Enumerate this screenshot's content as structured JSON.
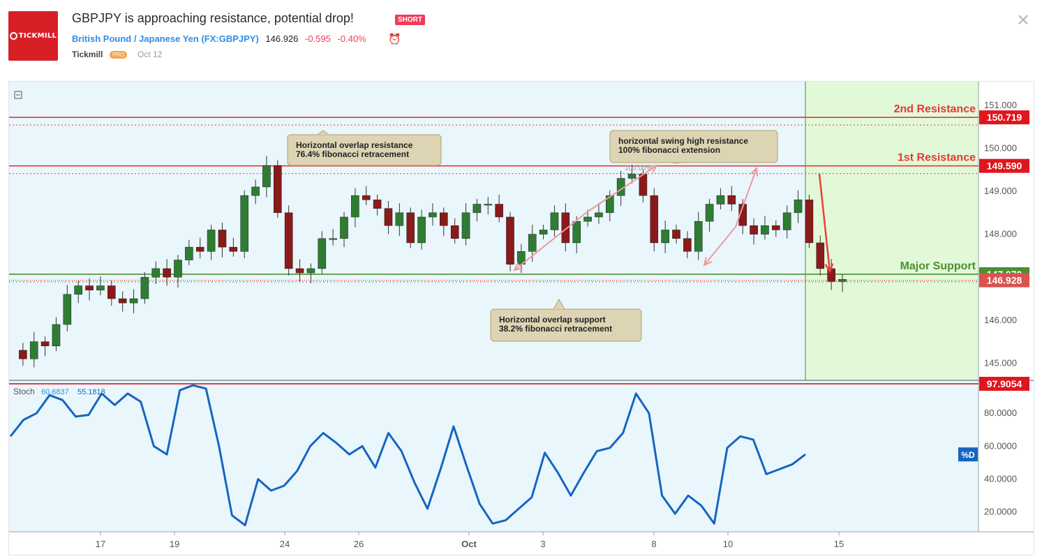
{
  "header": {
    "logo_text": "TICKMILL",
    "title": "GBPJPY is approaching resistance, potential drop!",
    "badge": "SHORT",
    "symbol_name": "British Pound / Japanese Yen",
    "symbol_code": "(FX:GBPJPY)",
    "price": "146.926",
    "change": "-0.595",
    "change_pct": "-0.40%",
    "author": "Tickmill",
    "author_badge": "PRO",
    "date": "Oct 12",
    "close_glyph": "✕",
    "alarm_glyph": "⏰"
  },
  "chart_data": [
    {
      "type": "line",
      "name": "price",
      "x_ticks": [
        "17",
        "19",
        "24",
        "26",
        "Oct",
        "3",
        "8",
        "10",
        "15"
      ],
      "y_ticks": [
        "151.000",
        "150.000",
        "149.000",
        "148.000",
        "147.000",
        "146.000",
        "145.000"
      ],
      "ylim": [
        144.6,
        151.55
      ],
      "series": [
        {
          "values": [
            145.3,
            145.1,
            145.5,
            145.4,
            145.9,
            146.6,
            146.8,
            146.7,
            146.8,
            146.5,
            146.4,
            146.5,
            147.0,
            147.2,
            147.0,
            147.4,
            147.7,
            147.6,
            148.1,
            147.7,
            147.6,
            148.9,
            149.1,
            149.6,
            148.5,
            147.2,
            147.1,
            147.2,
            147.9,
            147.9,
            148.4,
            148.9,
            148.8,
            148.6,
            148.2,
            148.5,
            147.8,
            148.4,
            148.5,
            148.2,
            147.9,
            148.5,
            148.7,
            148.7,
            148.4,
            147.3,
            147.6,
            148.0,
            148.1,
            148.5,
            147.8,
            148.3,
            148.4,
            148.5,
            148.9,
            149.3,
            149.4,
            148.9,
            147.8,
            148.1,
            147.9,
            147.6,
            148.3,
            148.7,
            148.9,
            148.7,
            148.2,
            148.0,
            148.2,
            148.1,
            148.5,
            148.8,
            147.8,
            147.2,
            146.9,
            146.95
          ]
        }
      ],
      "levels": [
        {
          "label": "2nd Resistance",
          "value": "150.719",
          "color": "#e53935"
        },
        {
          "label": "1st Resistance",
          "value": "149.590",
          "color": "#e53935"
        },
        {
          "label": "Major Support",
          "value": "147.070",
          "color": "#4c8f2f"
        }
      ],
      "current_price_tag": "146.928",
      "annotations": [
        {
          "line1": "Horizontal overlap resistance",
          "line2": "76.4% fibonacci retracement"
        },
        {
          "line1": "horizontal swing high resistance",
          "line2": "100% fibonacci extension"
        },
        {
          "line1": "Horizontal overlap support",
          "line2": "38.2% fibonacci retracement"
        }
      ],
      "fib_label": "100.00%"
    },
    {
      "type": "line",
      "name": "stochastic",
      "indicator_label": "Stoch",
      "indicator_values": [
        "60.6837",
        "55.1818"
      ],
      "y_ticks": [
        "80.0000",
        "60.0000",
        "40.0000",
        "20.0000"
      ],
      "ylim": [
        8,
        100
      ],
      "overbought_tag": "97.9054",
      "series_tag": "%D",
      "series": [
        {
          "color": "#1565c0",
          "values": [
            66,
            76,
            80,
            91,
            88,
            78,
            79,
            92,
            85,
            92,
            87,
            60,
            55,
            94,
            97,
            95,
            60,
            18,
            12,
            40,
            33,
            36,
            45,
            60,
            68,
            62,
            55,
            60,
            47,
            68,
            57,
            38,
            22,
            46,
            72,
            48,
            25,
            13,
            15,
            22,
            29,
            56,
            44,
            30,
            44,
            57,
            59,
            68,
            92,
            80,
            30,
            19,
            30,
            24,
            13,
            59,
            66,
            64,
            43,
            46,
            49,
            55
          ]
        }
      ]
    }
  ]
}
